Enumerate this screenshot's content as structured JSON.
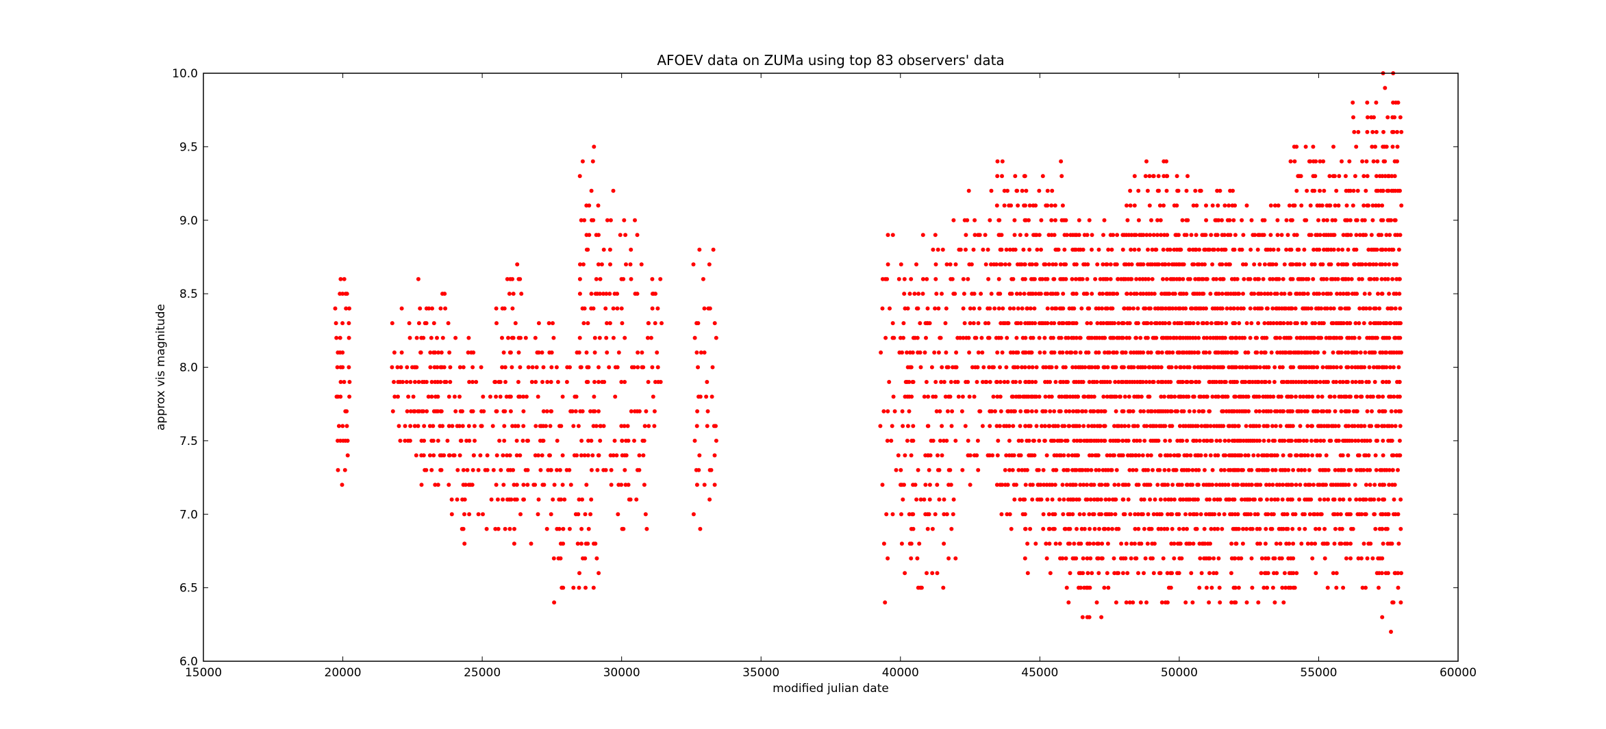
{
  "chart_data": {
    "type": "scatter",
    "title": "AFOEV data on ZUMa using top 83 observers' data",
    "xlabel": "modified julian date",
    "ylabel": "approx vis magnitude",
    "xlim": [
      15000,
      60000
    ],
    "ylim": [
      6.0,
      10.0
    ],
    "xticks": [
      15000,
      20000,
      25000,
      30000,
      35000,
      40000,
      45000,
      50000,
      55000,
      60000
    ],
    "yticks": [
      "6.0",
      "6.5",
      "7.0",
      "7.5",
      "8.0",
      "8.5",
      "9.0",
      "9.5",
      "10.0"
    ],
    "grid": false,
    "legend": "none",
    "marker_color": "#ff0000",
    "magnitude_step": 0.1,
    "series": [
      {
        "note_columns": "each cluster: MJD start, MJD end, min mag, max mag, density (0-1)",
        "clusters": [
          [
            19750,
            20300,
            7.2,
            8.6,
            0.55
          ],
          [
            21800,
            22600,
            7.4,
            8.4,
            0.45
          ],
          [
            22600,
            23800,
            7.2,
            8.6,
            0.5
          ],
          [
            23800,
            24700,
            6.8,
            8.3,
            0.35
          ],
          [
            24700,
            25500,
            6.9,
            8.0,
            0.3
          ],
          [
            25500,
            26500,
            6.8,
            8.7,
            0.4
          ],
          [
            26500,
            27500,
            6.8,
            8.3,
            0.35
          ],
          [
            27500,
            28500,
            6.4,
            8.3,
            0.3
          ],
          [
            28500,
            29200,
            6.5,
            9.5,
            0.4
          ],
          [
            29200,
            30000,
            6.9,
            9.3,
            0.3
          ],
          [
            30000,
            31000,
            6.8,
            9.0,
            0.25
          ],
          [
            31000,
            31400,
            7.5,
            8.7,
            0.3
          ],
          [
            32600,
            33400,
            6.8,
            8.8,
            0.25
          ],
          [
            39300,
            40000,
            6.4,
            9.0,
            0.2
          ],
          [
            40000,
            41000,
            6.5,
            9.0,
            0.3
          ],
          [
            41000,
            42000,
            6.5,
            9.0,
            0.3
          ],
          [
            42000,
            43500,
            7.2,
            9.2,
            0.35
          ],
          [
            43500,
            44500,
            6.8,
            9.4,
            0.55
          ],
          [
            44500,
            46000,
            6.6,
            9.4,
            0.65
          ],
          [
            46000,
            48000,
            6.3,
            9.1,
            0.72
          ],
          [
            48000,
            50000,
            6.4,
            9.4,
            0.72
          ],
          [
            50000,
            52000,
            6.4,
            9.3,
            0.78
          ],
          [
            52000,
            54000,
            6.4,
            9.1,
            0.75
          ],
          [
            54000,
            56000,
            6.5,
            9.5,
            0.72
          ],
          [
            56000,
            57300,
            6.5,
            9.8,
            0.7
          ],
          [
            57300,
            58000,
            6.2,
            10.0,
            0.7
          ]
        ]
      }
    ]
  }
}
